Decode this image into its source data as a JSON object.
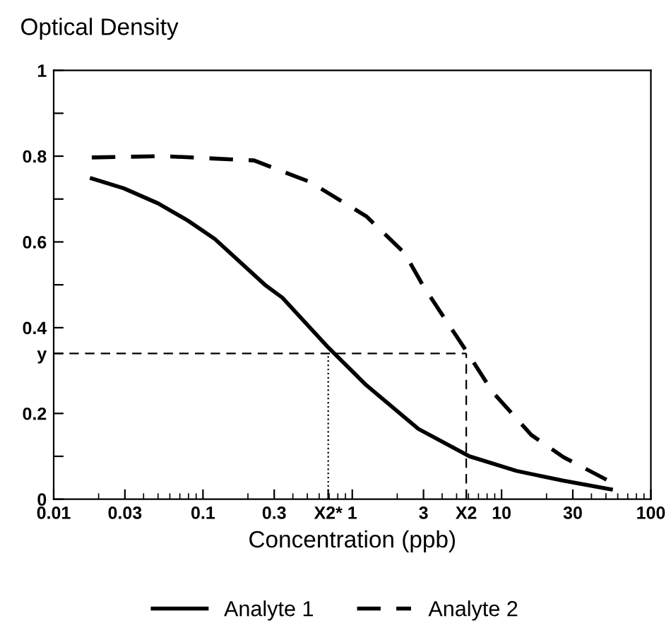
{
  "chart_data": {
    "type": "line",
    "ylabel": "Optical Density",
    "xlabel": "Concentration (ppb)",
    "log": "x",
    "xlim": [
      0.01,
      100
    ],
    "ylim": [
      0,
      1
    ],
    "xticks": [
      0.01,
      0.03,
      0.1,
      0.3,
      {
        "value": 0.69,
        "label": "X2*"
      },
      1,
      3,
      {
        "value": 5.8,
        "label": "X2"
      },
      10,
      30,
      100
    ],
    "yticks": [
      0,
      {
        "value": 0.1,
        "label": null
      },
      0.2,
      {
        "value": 0.34,
        "label": "y"
      },
      0.4,
      {
        "value": 0.5,
        "label": null
      },
      0.6,
      {
        "value": 0.7,
        "label": null
      },
      0.8,
      {
        "value": 0.9,
        "label": null
      },
      1
    ],
    "series": [
      {
        "name": "Analyte 1",
        "color": "#000000",
        "line_style": "solid",
        "x": [
          0.018,
          0.0295,
          0.05,
          0.079,
          0.12,
          0.26,
          0.34,
          0.69,
          1.24,
          2.77,
          6.1,
          12.6,
          26,
          54
        ],
        "values": [
          0.748,
          0.725,
          0.69,
          0.65,
          0.607,
          0.5,
          0.47,
          0.354,
          0.266,
          0.164,
          0.1,
          0.066,
          0.043,
          0.023
        ]
      },
      {
        "name": "Analyte 2",
        "color": "#000000",
        "line_style": "dashed",
        "x": [
          0.018,
          0.055,
          0.22,
          0.52,
          1.24,
          2.24,
          2.96,
          3.9,
          6.0,
          8.7,
          15.8,
          26,
          52
        ],
        "values": [
          0.797,
          0.8,
          0.79,
          0.74,
          0.66,
          0.574,
          0.5,
          0.436,
          0.338,
          0.25,
          0.15,
          0.098,
          0.043
        ]
      }
    ],
    "ref_lines": [
      {
        "axis": "y",
        "value": 0.34,
        "line_style": "dashed",
        "color": "#000000"
      },
      {
        "axis": "x",
        "value": 0.69,
        "line_style": "dotted",
        "color": "#000000"
      },
      {
        "axis": "x",
        "value": 5.8,
        "line_style": "dashed",
        "color": "#000000"
      }
    ],
    "grid": false,
    "legend": "bottom",
    "marker": "none"
  }
}
